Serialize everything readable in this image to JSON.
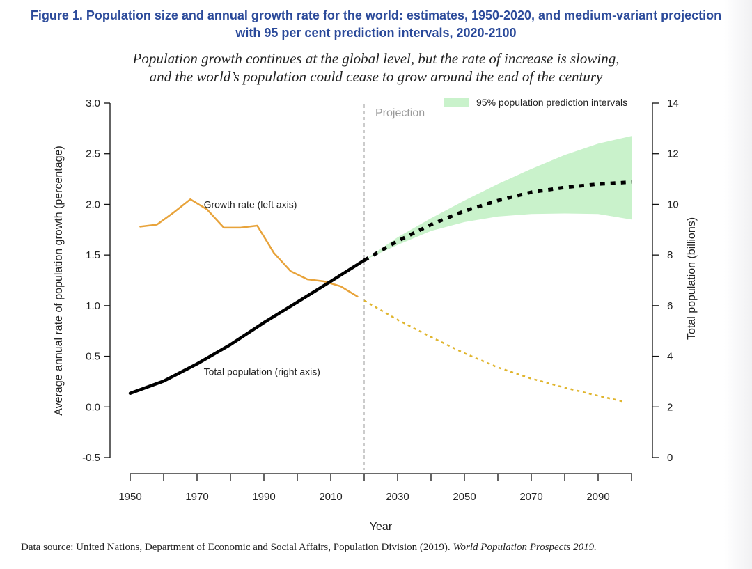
{
  "figure": {
    "title_line1": "Figure 1. Population size and annual growth rate for the world: estimates, 1950-2020, and medium-variant projection",
    "title_line2": "with 95 per cent prediction intervals, 2020-2100",
    "subtitle_line1": "Population growth continues at the global level, but the rate of increase is slowing,",
    "subtitle_line2": "and the world’s population could cease to grow around the end of the century",
    "source_prefix": "Data source: United Nations, Department of Economic and Social Affairs, Population Division (2019).",
    "source_publication": "World Population Prospects 2019."
  },
  "chart_data": {
    "type": "line",
    "xlabel": "Year",
    "ylabel_left": "Average annual rate of population growth (percentage)",
    "ylabel_right": "Total population (billions)",
    "x_range": [
      1950,
      2100
    ],
    "x_ticks": [
      1950,
      1960,
      1970,
      1980,
      1990,
      2000,
      2010,
      2020,
      2030,
      2040,
      2050,
      2060,
      2070,
      2080,
      2090,
      2100
    ],
    "x_tick_labels": [
      {
        "value": 1950,
        "label": "1950"
      },
      {
        "value": 1970,
        "label": "1970"
      },
      {
        "value": 1990,
        "label": "1990"
      },
      {
        "value": 2010,
        "label": "2010"
      },
      {
        "value": 2030,
        "label": "2030"
      },
      {
        "value": 2050,
        "label": "2050"
      },
      {
        "value": 2070,
        "label": "2070"
      },
      {
        "value": 2090,
        "label": "2090"
      }
    ],
    "y_left_range": [
      -0.5,
      3.0
    ],
    "y_left_ticks": [
      {
        "value": 3.0,
        "label": "3.0"
      },
      {
        "value": 2.5,
        "label": "2.5"
      },
      {
        "value": 2.0,
        "label": "2.0"
      },
      {
        "value": 1.5,
        "label": "1.5"
      },
      {
        "value": 1.0,
        "label": "1.0"
      },
      {
        "value": 0.5,
        "label": "0.5"
      },
      {
        "value": 0.0,
        "label": "0.0"
      },
      {
        "value": -0.5,
        "label": "-0.5"
      }
    ],
    "y_right_range": [
      0,
      14
    ],
    "y_right_ticks": [
      {
        "value": 14,
        "label": "14"
      },
      {
        "value": 12,
        "label": "12"
      },
      {
        "value": 10,
        "label": "10"
      },
      {
        "value": 8,
        "label": "8"
      },
      {
        "value": 6,
        "label": "6"
      },
      {
        "value": 4,
        "label": "4"
      },
      {
        "value": 2,
        "label": "2"
      },
      {
        "value": 0,
        "label": "0"
      }
    ],
    "projection_year": 2020,
    "projection_label": "Projection",
    "legend_label": "95% population prediction intervals",
    "legend_position": "top-right",
    "annotations": {
      "growth": {
        "text": "Growth rate (left axis)",
        "x": 1972,
        "y": 2.0
      },
      "population": {
        "text": "Total population (right axis)",
        "x": 1972,
        "y": 0.35
      }
    },
    "series": [
      {
        "name": "Growth rate estimate",
        "axis": "left",
        "style": "solid",
        "color": "#e8a33a",
        "x": [
          1953,
          1958,
          1963,
          1968,
          1973,
          1978,
          1983,
          1988,
          1993,
          1998,
          2003,
          2008,
          2013,
          2018
        ],
        "values": [
          1.78,
          1.8,
          1.92,
          2.05,
          1.95,
          1.77,
          1.77,
          1.79,
          1.52,
          1.34,
          1.26,
          1.24,
          1.19,
          1.09
        ]
      },
      {
        "name": "Growth rate projection",
        "axis": "left",
        "style": "dashed",
        "color": "#e0b52e",
        "x": [
          2020,
          2030,
          2040,
          2050,
          2060,
          2070,
          2080,
          2090,
          2098
        ],
        "values": [
          1.05,
          0.86,
          0.69,
          0.53,
          0.39,
          0.28,
          0.19,
          0.11,
          0.05
        ]
      },
      {
        "name": "Total population estimate",
        "axis": "right",
        "style": "solid",
        "color": "#000000",
        "x": [
          1950,
          1960,
          1970,
          1980,
          1990,
          2000,
          2010,
          2020
        ],
        "values": [
          2.54,
          3.02,
          3.7,
          4.46,
          5.33,
          6.14,
          6.96,
          7.79
        ]
      },
      {
        "name": "Total population projection",
        "axis": "right",
        "style": "dotted",
        "color": "#000000",
        "x": [
          2020,
          2030,
          2040,
          2050,
          2060,
          2070,
          2080,
          2090,
          2100
        ],
        "values": [
          7.79,
          8.55,
          9.2,
          9.74,
          10.15,
          10.48,
          10.67,
          10.8,
          10.88
        ]
      },
      {
        "name": "95% population prediction intervals",
        "axis": "right",
        "style": "band",
        "color": "#c9f2cb",
        "x": [
          2020,
          2030,
          2040,
          2050,
          2060,
          2070,
          2080,
          2090,
          2100
        ],
        "lower": [
          7.79,
          8.4,
          8.95,
          9.3,
          9.52,
          9.62,
          9.64,
          9.62,
          9.4
        ],
        "upper": [
          7.79,
          8.7,
          9.45,
          10.15,
          10.8,
          11.4,
          11.95,
          12.4,
          12.7
        ]
      }
    ]
  }
}
